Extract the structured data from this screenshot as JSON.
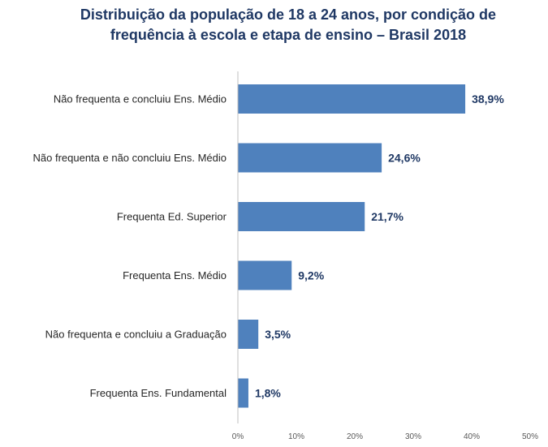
{
  "chart_data": {
    "type": "bar",
    "orientation": "horizontal",
    "title": "Distribuição da população de 18 a 24 anos, por condição de frequência à escola e etapa de ensino – Brasil 2018",
    "title_lines": [
      "Distribuição da população de 18 a 24 anos, por condição de",
      "frequência à escola e etapa de ensino – Brasil 2018"
    ],
    "categories": [
      "Não frequenta e concluiu Ens. Médio",
      "Não frequenta e não concluiu Ens. Médio",
      "Frequenta Ed. Superior",
      "Frequenta Ens. Médio",
      "Não frequenta e concluiu a Graduação",
      "Frequenta Ens. Fundamental"
    ],
    "values": [
      38.9,
      24.6,
      21.7,
      9.2,
      3.5,
      1.8
    ],
    "data_labels": [
      "38,9%",
      "24,6%",
      "21,7%",
      "9,2%",
      "3,5%",
      "1,8%"
    ],
    "xlim": [
      0,
      50
    ],
    "x_ticks": [
      0,
      10,
      20,
      30,
      40,
      50
    ],
    "x_tick_labels": [
      "0%",
      "10%",
      "20%",
      "30%",
      "40%",
      "50%"
    ],
    "xlabel": "",
    "ylabel": "",
    "grid": false,
    "legend": "none",
    "bar_color": "#4f81bd",
    "label_color": "#1f3864"
  }
}
